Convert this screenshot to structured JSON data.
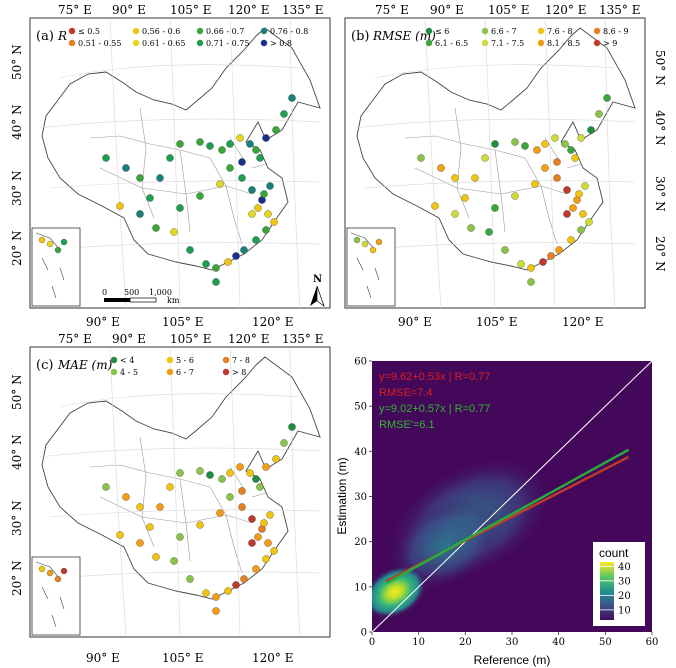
{
  "panels": {
    "a": {
      "label": "(a)",
      "metric": "R",
      "legend": [
        "≤ 0.5",
        "0.51 - 0.55",
        "0.56 - 0.6",
        "0.61 - 0.65",
        "0.66 - 0.7",
        "0.71 - 0.75",
        "0.76 - 0.8",
        "> 0.8"
      ],
      "colors": [
        "#c0392b",
        "#e67e22",
        "#f1c40f",
        "#e6d61f",
        "#3aa63a",
        "#1e9e50",
        "#19807a",
        "#1a2f8a"
      ],
      "scalebar": {
        "ticks": [
          "0",
          "500",
          "1,000"
        ],
        "unit": "km"
      },
      "north": "N"
    },
    "b": {
      "label": "(b)",
      "metric": "RMSE (m)",
      "legend": [
        "≤ 6",
        "6.1 - 6.5",
        "6.6 - 7",
        "7.1 - 7.5",
        "7.6 - 8",
        "8.1 - 8.5",
        "8.6 - 9",
        "> 9"
      ],
      "colors": [
        "#1e8e3e",
        "#3aa63a",
        "#8bc34a",
        "#cddc39",
        "#f1c40f",
        "#f39c12",
        "#e67e22",
        "#c0392b"
      ]
    },
    "c": {
      "label": "(c)",
      "metric": "MAE (m)",
      "legend": [
        "< 4",
        "4 - 5",
        "5 - 6",
        "6 - 7",
        "7 - 8",
        "> 8"
      ],
      "colors": [
        "#1e8e3e",
        "#8bc34a",
        "#f1c40f",
        "#f39c12",
        "#e67e22",
        "#c0392b"
      ]
    }
  },
  "map_axes": {
    "top_ticks": [
      "75° E",
      "90° E",
      "105° E",
      "120° E",
      "135° E"
    ],
    "bottom_ticks": [
      "90° E",
      "105° E",
      "120° E"
    ],
    "lat_ticks": [
      "50° N",
      "40° N",
      "30° N",
      "20° N"
    ]
  },
  "chart_data": {
    "type": "heatmap",
    "xlabel": "Reference (m)",
    "ylabel": "Estimation (m)",
    "xlim": [
      0,
      60
    ],
    "ylim": [
      0,
      60
    ],
    "xticks": [
      "0",
      "10",
      "20",
      "30",
      "40",
      "50",
      "60"
    ],
    "yticks": [
      "0",
      "10",
      "20",
      "30",
      "40",
      "50",
      "60"
    ],
    "density_peak": {
      "x": 4,
      "y": 8
    },
    "one_to_one_line": true,
    "fit_lines": [
      {
        "label": "y=9.62+0.53x | R=0.77",
        "intercept": 9.62,
        "slope": 0.53,
        "color": "#c0392b",
        "rmse_label": "RMSE=7.4"
      },
      {
        "label": "y=9.02+0.57x | R=0.77",
        "intercept": 9.02,
        "slope": 0.57,
        "color": "#27ae3a",
        "rmse_label": "RMSE'=6.1"
      }
    ],
    "fit_x_range": [
      3,
      55
    ],
    "colorbar": {
      "title": "count",
      "ticks": [
        "40",
        "30",
        "20",
        "10"
      ],
      "values": [
        40,
        30,
        20,
        10
      ],
      "min": 3,
      "max": 43
    },
    "background": "#44085a"
  }
}
